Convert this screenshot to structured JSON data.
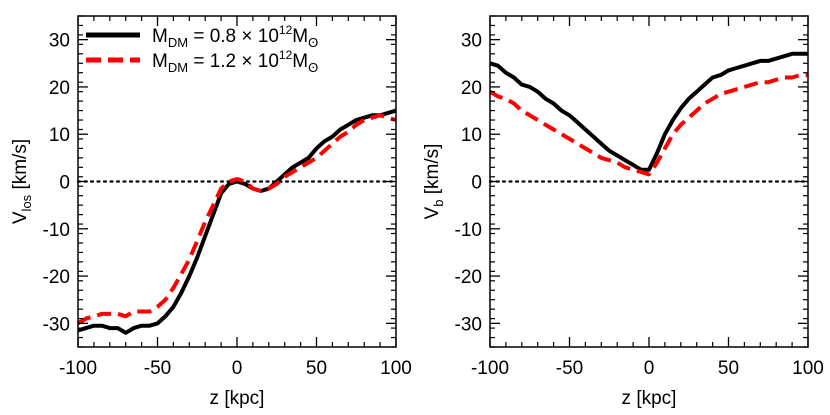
{
  "chart_data": [
    {
      "type": "line",
      "xlabel": "z [kpc]",
      "ylabel": {
        "main": "V",
        "sub": "los",
        "unit": " [km/s]"
      },
      "xlim": [
        -100,
        100
      ],
      "ylim": [
        -35,
        35
      ],
      "xticks": [
        "-100",
        "-50",
        "0",
        "50",
        "100"
      ],
      "yticks": [
        "-30",
        "-20",
        "-10",
        "0",
        "10",
        "20",
        "30"
      ],
      "zero_line": {
        "y": 0,
        "style": "dotted",
        "color": "#000000"
      },
      "legend": {
        "placement": "top-left",
        "entries": [
          {
            "lhs": "M",
            "lhs_sub": "DM",
            "eq": " = 0.8 × 10",
            "exp": "12",
            "unit": "M",
            "unit_sub": "ʘ",
            "color": "#000000",
            "style": "solid"
          },
          {
            "lhs": "M",
            "lhs_sub": "DM",
            "eq": " = 1.2 × 10",
            "exp": "12",
            "unit": "M",
            "unit_sub": "ʘ",
            "color": "#ff0000",
            "style": "dashed"
          }
        ]
      },
      "series": [
        {
          "color": "#000000",
          "style": "solid",
          "x": [
            -100,
            -95,
            -90,
            -85,
            -80,
            -75,
            -70,
            -65,
            -60,
            -55,
            -50,
            -45,
            -40,
            -35,
            -30,
            -25,
            -20,
            -15,
            -10,
            -5,
            0,
            5,
            10,
            15,
            20,
            25,
            30,
            35,
            40,
            45,
            50,
            55,
            60,
            65,
            70,
            75,
            80,
            85,
            90,
            95,
            100
          ],
          "y": [
            -31.5,
            -31,
            -30.5,
            -30.5,
            -31,
            -31,
            -32,
            -31,
            -30.5,
            -30.5,
            -30,
            -28.5,
            -26.5,
            -23.5,
            -20,
            -16,
            -11.5,
            -7,
            -2.5,
            -0.5,
            0,
            -0.5,
            -1.5,
            -2,
            -1.5,
            0,
            1.5,
            3,
            4,
            5,
            7,
            8.5,
            9.5,
            11,
            12,
            13,
            13.5,
            14,
            14,
            14.5,
            15
          ]
        },
        {
          "color": "#ff0000",
          "style": "dashed",
          "x": [
            -100,
            -95,
            -90,
            -85,
            -80,
            -75,
            -70,
            -65,
            -60,
            -55,
            -50,
            -45,
            -40,
            -35,
            -30,
            -25,
            -20,
            -15,
            -10,
            -5,
            0,
            5,
            10,
            15,
            20,
            25,
            30,
            35,
            40,
            45,
            50,
            55,
            60,
            65,
            70,
            75,
            80,
            85,
            90,
            95,
            100
          ],
          "y": [
            -30,
            -29,
            -28.5,
            -28,
            -28,
            -28,
            -28.5,
            -27.5,
            -27.5,
            -27.5,
            -26.5,
            -25,
            -22.5,
            -19.5,
            -16.5,
            -12.5,
            -8.5,
            -5,
            -1.5,
            0,
            0.5,
            0,
            -1.5,
            -2,
            -1.5,
            -0.5,
            1,
            2,
            3,
            4,
            5,
            6.5,
            8,
            9.5,
            10.5,
            12,
            13,
            13.5,
            14,
            13.5,
            13
          ]
        }
      ]
    },
    {
      "type": "line",
      "xlabel": "z [kpc]",
      "ylabel": {
        "main": "V",
        "sub": "b",
        "unit": " [km/s]"
      },
      "xlim": [
        -100,
        100
      ],
      "ylim": [
        -35,
        35
      ],
      "xticks": [
        "-100",
        "-50",
        "0",
        "50",
        "100"
      ],
      "yticks": [
        "-30",
        "-20",
        "-10",
        "0",
        "10",
        "20",
        "30"
      ],
      "zero_line": {
        "y": 0,
        "style": "dotted",
        "color": "#000000"
      },
      "series": [
        {
          "color": "#000000",
          "style": "solid",
          "x": [
            -100,
            -95,
            -90,
            -85,
            -80,
            -75,
            -70,
            -65,
            -60,
            -55,
            -50,
            -45,
            -40,
            -35,
            -30,
            -25,
            -20,
            -15,
            -10,
            -5,
            0,
            5,
            10,
            15,
            20,
            25,
            30,
            35,
            40,
            45,
            50,
            55,
            60,
            65,
            70,
            75,
            80,
            85,
            90,
            95,
            100
          ],
          "y": [
            25,
            24.5,
            23,
            22,
            20.5,
            20,
            19,
            17.5,
            16.5,
            15,
            14,
            12.5,
            11,
            9.5,
            8,
            6.5,
            5.5,
            4.5,
            3.5,
            2.5,
            2.5,
            6,
            10,
            13,
            15.5,
            17.5,
            19,
            20.5,
            22,
            22.5,
            23.5,
            24,
            24.5,
            25,
            25.5,
            25.5,
            26,
            26.5,
            27,
            27,
            27
          ]
        },
        {
          "color": "#ff0000",
          "style": "dashed",
          "x": [
            -100,
            -95,
            -90,
            -85,
            -80,
            -75,
            -70,
            -65,
            -60,
            -55,
            -50,
            -45,
            -40,
            -35,
            -30,
            -25,
            -20,
            -15,
            -10,
            -5,
            0,
            5,
            10,
            15,
            20,
            25,
            30,
            35,
            40,
            45,
            50,
            55,
            60,
            65,
            70,
            75,
            80,
            85,
            90,
            95,
            100
          ],
          "y": [
            19,
            18,
            17.5,
            16.5,
            15,
            14,
            13,
            12,
            11,
            10,
            9,
            8,
            7,
            6,
            5,
            4.5,
            4,
            3,
            2.5,
            2,
            1.5,
            4,
            7,
            10,
            12,
            13.5,
            15,
            16.5,
            17.5,
            18.5,
            19,
            19.5,
            20,
            20.5,
            21,
            21,
            21.5,
            22,
            22,
            22.5,
            22.5
          ]
        }
      ]
    }
  ]
}
